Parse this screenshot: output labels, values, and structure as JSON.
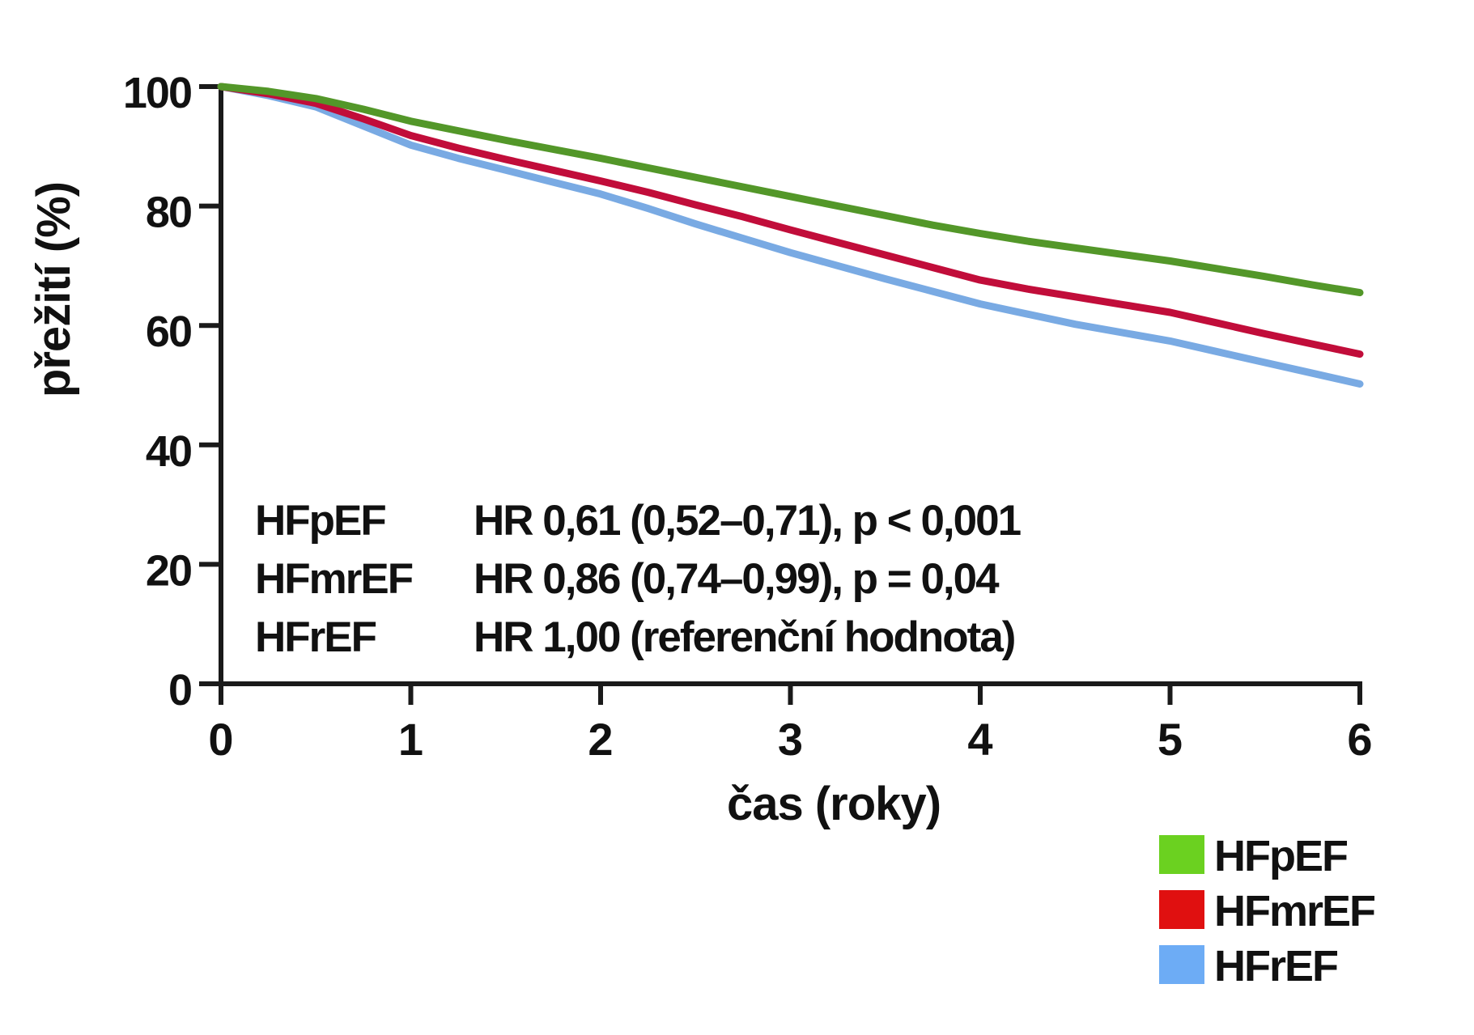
{
  "chart_data": {
    "type": "line",
    "title": "",
    "xlabel": "čas (roky)",
    "ylabel": "přežití (%)",
    "xlim": [
      0,
      6
    ],
    "ylim": [
      0,
      100
    ],
    "xticks": [
      "0",
      "1",
      "2",
      "3",
      "4",
      "5",
      "6"
    ],
    "xtick_values": [
      0,
      1,
      2,
      3,
      4,
      5,
      6
    ],
    "yticks": [
      "0",
      "20",
      "40",
      "60",
      "80",
      "100"
    ],
    "ytick_values": [
      0,
      20,
      40,
      60,
      80,
      100
    ],
    "grid": false,
    "x": [
      0,
      0.25,
      0.5,
      0.75,
      1,
      1.25,
      1.5,
      1.75,
      2,
      2.25,
      2.5,
      2.75,
      3,
      3.25,
      3.5,
      3.75,
      4,
      4.25,
      4.5,
      4.75,
      5,
      5.25,
      5.5,
      5.75,
      6
    ],
    "series": [
      {
        "name": "HFpEF",
        "color": "#539729",
        "values": [
          100,
          99.2,
          98.0,
          96.2,
          94.2,
          92.6,
          91.0,
          89.5,
          88.0,
          86.4,
          84.8,
          83.2,
          81.6,
          80.0,
          78.4,
          76.8,
          75.4,
          74.1,
          73.0,
          71.9,
          70.8,
          69.5,
          68.2,
          66.8,
          65.5
        ]
      },
      {
        "name": "HFmrEF",
        "color": "#c10d3a",
        "values": [
          100,
          98.8,
          97.2,
          94.6,
          91.8,
          89.7,
          87.8,
          86.0,
          84.2,
          82.3,
          80.2,
          78.2,
          76.0,
          73.9,
          71.8,
          69.7,
          67.6,
          66.1,
          64.8,
          63.5,
          62.2,
          60.4,
          58.6,
          56.9,
          55.2
        ]
      },
      {
        "name": "HFrEF",
        "color": "#79aae3",
        "values": [
          100,
          98.5,
          96.6,
          93.4,
          90.2,
          88.0,
          86.0,
          84.0,
          82.0,
          79.6,
          77.0,
          74.6,
          72.2,
          70.0,
          67.8,
          65.7,
          63.6,
          61.9,
          60.2,
          58.8,
          57.4,
          55.6,
          53.8,
          52.0,
          50.2
        ]
      }
    ],
    "annotations": [
      {
        "label": "HFpEF",
        "text": "HR 0,61 (0,52–0,71), p < 0,001"
      },
      {
        "label": "HFmrEF",
        "text": "HR 0,86 (0,74–0,99), p = 0,04"
      },
      {
        "label": "HFrEF",
        "text": "HR 1,00 (referenční hodnota)"
      }
    ],
    "legend": {
      "position": "bottom-right",
      "items": [
        {
          "label": "HFpEF",
          "color": "#6bd120"
        },
        {
          "label": "HFmrEF",
          "color": "#e01010"
        },
        {
          "label": "HFrEF",
          "color": "#6dacf5"
        }
      ]
    }
  }
}
